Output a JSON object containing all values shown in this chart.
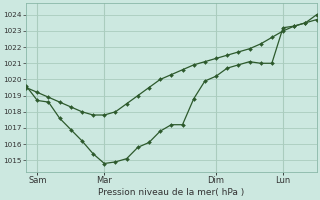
{
  "background_color": "#cce8e0",
  "grid_color": "#aaccbe",
  "line_color": "#2d5a2d",
  "marker_color": "#2d5a2d",
  "xlabel": "Pression niveau de la mer( hPa )",
  "ylim": [
    1014.3,
    1024.7
  ],
  "yticks": [
    1015,
    1016,
    1017,
    1018,
    1019,
    1020,
    1021,
    1022,
    1023,
    1024
  ],
  "smooth_x": [
    0,
    0.5,
    1.0,
    1.5,
    2.0,
    2.5,
    3.0,
    3.5,
    4.0,
    4.5,
    5.0,
    5.5,
    6.0,
    6.5,
    7.0,
    7.5,
    8.0,
    8.5,
    9.0,
    9.5,
    10.0,
    10.5,
    11.0,
    11.5,
    12.0,
    12.5,
    13.0
  ],
  "smooth_y": [
    1019.5,
    1019.2,
    1018.9,
    1018.6,
    1018.3,
    1018.0,
    1017.8,
    1017.8,
    1018.0,
    1018.5,
    1019.0,
    1019.5,
    1020.0,
    1020.3,
    1020.6,
    1020.9,
    1021.1,
    1021.3,
    1021.5,
    1021.7,
    1021.9,
    1022.2,
    1022.6,
    1023.0,
    1023.3,
    1023.5,
    1023.7
  ],
  "jagged_x": [
    0,
    0.5,
    1.0,
    1.5,
    2.0,
    2.5,
    3.0,
    3.5,
    4.0,
    4.5,
    5.0,
    5.5,
    6.0,
    6.5,
    7.0,
    7.5,
    8.0,
    8.5,
    9.0,
    9.5,
    10.0,
    10.5,
    11.0,
    11.5,
    12.0,
    12.5,
    13.0
  ],
  "jagged_y": [
    1019.6,
    1018.7,
    1018.6,
    1017.6,
    1016.9,
    1016.2,
    1015.4,
    1014.8,
    1014.9,
    1015.1,
    1015.8,
    1016.1,
    1016.8,
    1017.2,
    1017.2,
    1018.8,
    1019.9,
    1020.2,
    1020.7,
    1020.9,
    1021.1,
    1021.0,
    1021.0,
    1023.2,
    1023.3,
    1023.5,
    1024.0
  ],
  "xlim": [
    0,
    13.0
  ],
  "xtick_positions": [
    0.5,
    3.5,
    8.5,
    11.5
  ],
  "xtick_labels": [
    "Sam",
    "Mar",
    "Dim",
    "Lun"
  ],
  "vline_positions": [
    0.5,
    3.5,
    8.5,
    11.5
  ],
  "figsize": [
    3.2,
    2.0
  ],
  "dpi": 100
}
